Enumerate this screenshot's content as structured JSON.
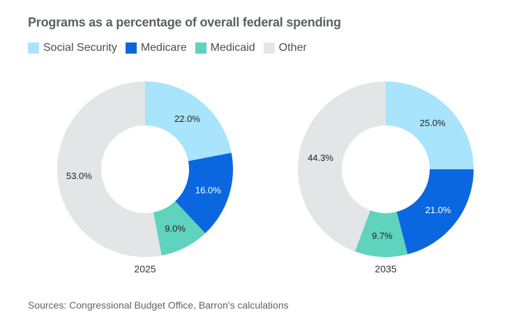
{
  "title": "Programs as a percentage of overall federal spending",
  "source": "Sources: Congressional Budget Office, Barron's calculations",
  "legend": [
    {
      "label": "Social Security",
      "color": "#a8e4fb"
    },
    {
      "label": "Medicare",
      "color": "#0b67e0"
    },
    {
      "label": "Medicaid",
      "color": "#5fd3bd"
    },
    {
      "label": "Other",
      "color": "#e3e5e6"
    }
  ],
  "chart_data": [
    {
      "type": "pie",
      "donut": true,
      "label": "2025",
      "categories": [
        "Social Security",
        "Medicare",
        "Medicaid",
        "Other"
      ],
      "values": [
        22.0,
        16.0,
        9.0,
        53.0
      ],
      "value_labels": [
        "22.0%",
        "16.0%",
        "9.0%",
        "53.0%"
      ],
      "colors": [
        "#a8e4fb",
        "#0b67e0",
        "#5fd3bd",
        "#e3e5e6"
      ],
      "label_colors": [
        "#222222",
        "#ffffff",
        "#222222",
        "#222222"
      ]
    },
    {
      "type": "pie",
      "donut": true,
      "label": "2035",
      "categories": [
        "Social Security",
        "Medicare",
        "Medicaid",
        "Other"
      ],
      "values": [
        25.0,
        21.0,
        9.7,
        44.3
      ],
      "value_labels": [
        "25.0%",
        "21.0%",
        "9.7%",
        "44.3%"
      ],
      "colors": [
        "#a8e4fb",
        "#0b67e0",
        "#5fd3bd",
        "#e3e5e6"
      ],
      "label_colors": [
        "#222222",
        "#ffffff",
        "#222222",
        "#222222"
      ]
    }
  ]
}
